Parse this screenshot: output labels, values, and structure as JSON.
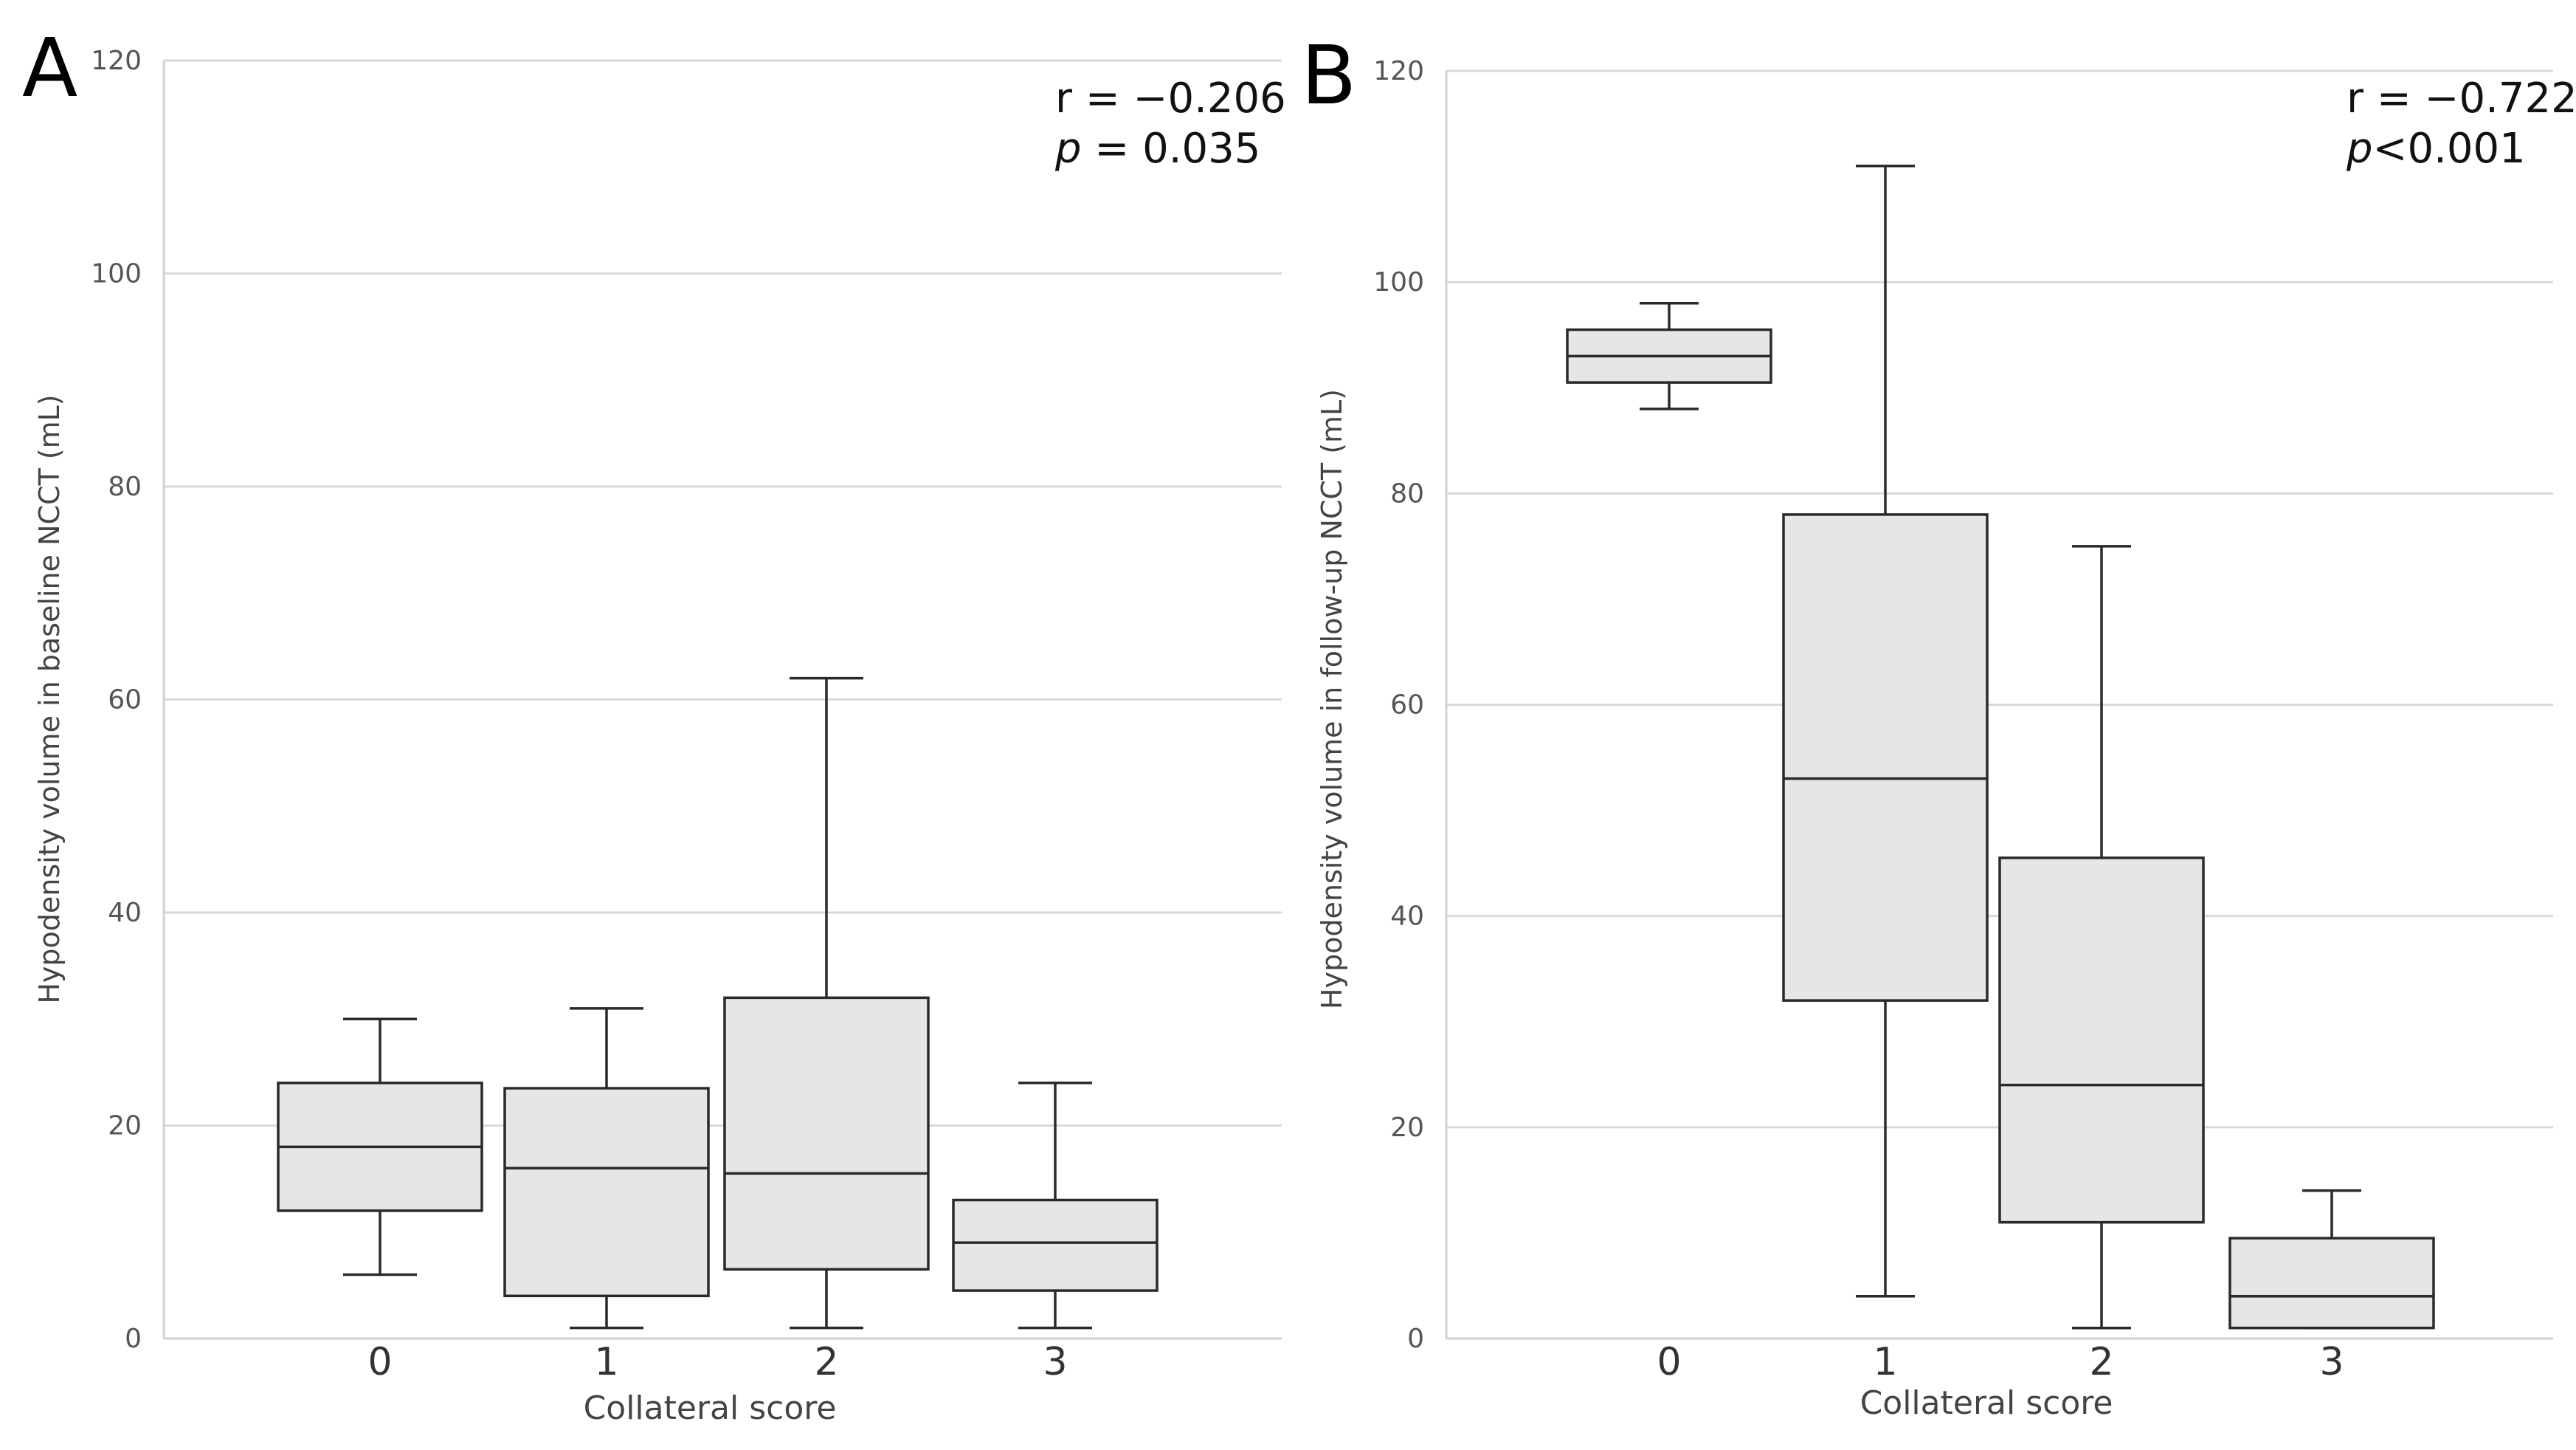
{
  "chart_data": [
    {
      "type": "box",
      "panel": "A",
      "categories": [
        "0",
        "1",
        "2",
        "3"
      ],
      "boxes": [
        {
          "category": "0",
          "min": 6,
          "q1": 12,
          "median": 18,
          "q3": 24,
          "max": 30
        },
        {
          "category": "1",
          "min": 1,
          "q1": 4,
          "median": 16,
          "q3": 23.5,
          "max": 31
        },
        {
          "category": "2",
          "min": 1,
          "q1": 6.5,
          "median": 15.5,
          "q3": 32,
          "max": 62
        },
        {
          "category": "3",
          "min": 1,
          "q1": 4.5,
          "median": 9,
          "q3": 13,
          "max": 24
        }
      ],
      "ylim": [
        0,
        120
      ],
      "yticks": [
        "0",
        "20",
        "40",
        "60",
        "80",
        "100",
        "120"
      ],
      "xlabel": "Collateral score",
      "ylabel": "Hypodensity volume in baseline NCCT (mL)",
      "stat_r_label": "r = ",
      "stat_r_value": "−0.206",
      "stat_p_symbol": "p",
      "stat_p_value": " = 0.035",
      "grid": true
    },
    {
      "type": "box",
      "panel": "B",
      "categories": [
        "0",
        "1",
        "2",
        "3"
      ],
      "boxes": [
        {
          "category": "0",
          "min": 88,
          "q1": 90.5,
          "median": 93,
          "q3": 95.5,
          "max": 98
        },
        {
          "category": "1",
          "min": 4,
          "q1": 32,
          "median": 53,
          "q3": 78,
          "max": 111
        },
        {
          "category": "2",
          "min": 1,
          "q1": 11,
          "median": 24,
          "q3": 45.5,
          "max": 75
        },
        {
          "category": "3",
          "min": 1,
          "q1": 1,
          "median": 4,
          "q3": 9.5,
          "max": 14
        }
      ],
      "ylim": [
        0,
        120
      ],
      "yticks": [
        "0",
        "20",
        "40",
        "60",
        "80",
        "100",
        "120"
      ],
      "xlabel": "Collateral score",
      "ylabel": "Hypodensity volume in follow-up NCCT (mL)",
      "stat_r_label": "r = ",
      "stat_r_value": "−0.722",
      "stat_p_symbol": "p",
      "stat_p_value": "<0.001",
      "grid": true
    }
  ]
}
